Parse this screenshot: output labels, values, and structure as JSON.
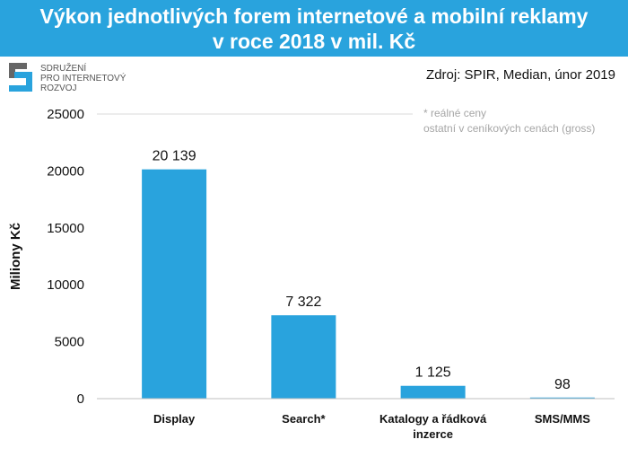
{
  "header": {
    "title_line1": "Výkon jednotlivých forem internetové a mobilní reklamy",
    "title_line2": "v roce 2018 v mil. Kč"
  },
  "logo": {
    "line1": "SDRUŽENÍ",
    "line2": "PRO INTERNETOVÝ",
    "line3": "ROZVOJ"
  },
  "source": "Zdroj: SPIR, Median, únor 2019",
  "note": {
    "line1": "* reálné ceny",
    "line2": "ostatní v ceníkových cenách (gross)"
  },
  "colors": {
    "bar": "#29a3dd",
    "title_bg": "#29a3dd"
  },
  "chart_data": {
    "type": "bar",
    "categories": [
      "Display",
      "Search*",
      "Katalogy a řádková inzerce",
      "SMS/MMS"
    ],
    "values": [
      20139,
      7322,
      1125,
      98
    ],
    "data_labels": [
      "20 139",
      "7 322",
      "1 125",
      "98"
    ],
    "ylabel": "Miliony Kč",
    "ylim": [
      0,
      25000
    ],
    "yticks": [
      0,
      5000,
      10000,
      15000,
      20000,
      25000
    ],
    "grid": false
  }
}
